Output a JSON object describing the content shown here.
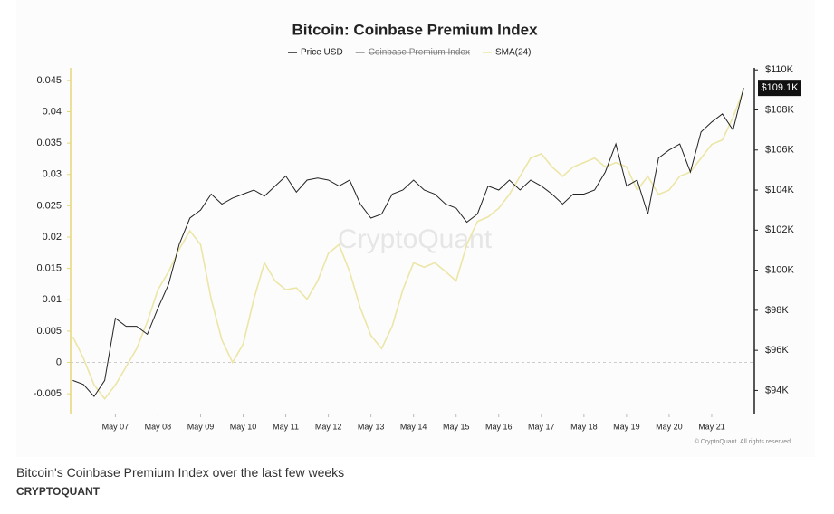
{
  "chart_data": {
    "type": "line",
    "title": "Bitcoin: Coinbase Premium Index",
    "hidden_series": "Coinbase Premium Index",
    "watermark": "CryptoQuant",
    "copyright": "© CryptoQuant. All rights reserved",
    "last_price_label": "$109.1K",
    "x": [
      6,
      6.25,
      6.5,
      6.75,
      7,
      7.25,
      7.5,
      7.75,
      8,
      8.25,
      8.5,
      8.75,
      9,
      9.25,
      9.5,
      9.75,
      10,
      10.25,
      10.5,
      10.75,
      11,
      11.25,
      11.5,
      11.75,
      12,
      12.25,
      12.5,
      12.75,
      13,
      13.25,
      13.5,
      13.75,
      14,
      14.25,
      14.5,
      14.75,
      15,
      15.25,
      15.5,
      15.75,
      16,
      16.25,
      16.5,
      16.75,
      17,
      17.25,
      17.5,
      17.75,
      18,
      18.25,
      18.5,
      18.75,
      19,
      19.25,
      19.5,
      19.75,
      20,
      20.25,
      20.5,
      20.75,
      21,
      21.25,
      21.5,
      21.75
    ],
    "xlim": [
      5.95,
      22.0
    ],
    "xticks": [
      {
        "value": 7,
        "label": "May 07"
      },
      {
        "value": 8,
        "label": "May 08"
      },
      {
        "value": 9,
        "label": "May 09"
      },
      {
        "value": 10,
        "label": "May 10"
      },
      {
        "value": 11,
        "label": "May 11"
      },
      {
        "value": 12,
        "label": "May 12"
      },
      {
        "value": 13,
        "label": "May 13"
      },
      {
        "value": 14,
        "label": "May 14"
      },
      {
        "value": 15,
        "label": "May 15"
      },
      {
        "value": 16,
        "label": "May 16"
      },
      {
        "value": 17,
        "label": "May 17"
      },
      {
        "value": 18,
        "label": "May 18"
      },
      {
        "value": 19,
        "label": "May 19"
      },
      {
        "value": 20,
        "label": "May 20"
      },
      {
        "value": 21,
        "label": "May 21"
      }
    ],
    "ylim": [
      -0.0083,
      0.047
    ],
    "yticks": [
      -0.005,
      0,
      0.005,
      0.01,
      0.015,
      0.02,
      0.025,
      0.03,
      0.035,
      0.04,
      0.045
    ],
    "y2lim": [
      92800,
      110100
    ],
    "y2ticks": [
      {
        "value": 94000,
        "label": "$94K"
      },
      {
        "value": 96000,
        "label": "$96K"
      },
      {
        "value": 98000,
        "label": "$98K"
      },
      {
        "value": 100000,
        "label": "$100K"
      },
      {
        "value": 102000,
        "label": "$102K"
      },
      {
        "value": 104000,
        "label": "$104K"
      },
      {
        "value": 106000,
        "label": "$106K"
      },
      {
        "value": 108000,
        "label": "$108K"
      },
      {
        "value": 110000,
        "label": "$110K"
      }
    ],
    "zero_line": true,
    "series": [
      {
        "name": "Price USD",
        "color": "#222222",
        "axis": "y2",
        "values": [
          94500,
          94300,
          93700,
          94500,
          97600,
          97200,
          97200,
          96800,
          98100,
          99300,
          101300,
          102600,
          103000,
          103800,
          103300,
          103600,
          103800,
          104000,
          103700,
          104200,
          104700,
          103900,
          104500,
          104600,
          104500,
          104200,
          104500,
          103300,
          102600,
          102800,
          103800,
          104000,
          104500,
          104000,
          103800,
          103300,
          103100,
          102400,
          102800,
          104200,
          104000,
          104500,
          104000,
          104500,
          104200,
          103800,
          103300,
          103800,
          103800,
          104000,
          104900,
          106300,
          104200,
          104500,
          102800,
          105600,
          106000,
          106300,
          104900,
          106900,
          107400,
          107800,
          107000,
          109100
        ]
      },
      {
        "name": "SMA(24)",
        "color": "#ece6a6",
        "axis": "y",
        "values": [
          0.0041,
          0.0007,
          -0.0036,
          -0.0058,
          -0.0036,
          -0.0007,
          0.0022,
          0.0065,
          0.0116,
          0.0145,
          0.0181,
          0.021,
          0.0188,
          0.0101,
          0.0036,
          0,
          0.0029,
          0.0101,
          0.0159,
          0.013,
          0.0116,
          0.0119,
          0.0101,
          0.013,
          0.0174,
          0.0188,
          0.0145,
          0.0087,
          0.0043,
          0.0022,
          0.0058,
          0.0116,
          0.0159,
          0.0152,
          0.0159,
          0.0145,
          0.013,
          0.0188,
          0.0225,
          0.0232,
          0.0246,
          0.0268,
          0.0297,
          0.0326,
          0.0333,
          0.0312,
          0.0297,
          0.0312,
          0.0319,
          0.0326,
          0.0312,
          0.0319,
          0.0312,
          0.0275,
          0.0297,
          0.0268,
          0.0275,
          0.0297,
          0.0304,
          0.0326,
          0.0348,
          0.0355,
          0.0391,
          0.0435
        ]
      }
    ]
  },
  "caption": {
    "text": "Bitcoin's Coinbase Premium Index over the last few weeks",
    "source": "CRYPTOQUANT"
  }
}
